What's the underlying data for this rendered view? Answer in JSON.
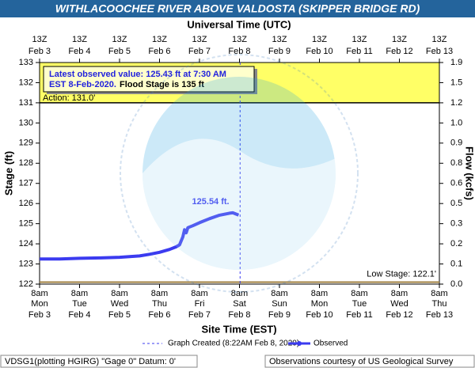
{
  "chart_data": {
    "type": "line",
    "title": "WITHLACOOCHEE RIVER ABOVE VALDOSTA (SKIPPER BRIDGE RD)",
    "top_axis_label": "Universal Time (UTC)",
    "x_label": "Site Time (EST)",
    "y_label": "Stage (ft)",
    "y2_label": "Flow (kcfs)",
    "xlim": [
      "2020-02-03T08:00",
      "2020-02-13T08:00"
    ],
    "xticks": [
      "2020-02-03T08:00",
      "2020-02-04T08:00",
      "2020-02-05T08:00",
      "2020-02-06T08:00",
      "2020-02-07T08:00",
      "2020-02-08T08:00",
      "2020-02-09T08:00",
      "2020-02-10T08:00",
      "2020-02-11T08:00",
      "2020-02-12T08:00",
      "2020-02-13T08:00"
    ],
    "xtick_labels": [
      {
        "time": "8am",
        "day": "Mon",
        "date": "Feb 3"
      },
      {
        "time": "8am",
        "day": "Tue",
        "date": "Feb 4"
      },
      {
        "time": "8am",
        "day": "Wed",
        "date": "Feb 5"
      },
      {
        "time": "8am",
        "day": "Thu",
        "date": "Feb 6"
      },
      {
        "time": "8am",
        "day": "Fri",
        "date": "Feb 7"
      },
      {
        "time": "8am",
        "day": "Sat",
        "date": "Feb 8"
      },
      {
        "time": "8am",
        "day": "Sun",
        "date": "Feb 9"
      },
      {
        "time": "8am",
        "day": "Mon",
        "date": "Feb 10"
      },
      {
        "time": "8am",
        "day": "Tue",
        "date": "Feb 11"
      },
      {
        "time": "8am",
        "day": "Wed",
        "date": "Feb 12"
      },
      {
        "time": "8am",
        "day": "Thu",
        "date": "Feb 13"
      }
    ],
    "top_tick_labels": [
      {
        "utc": "13Z",
        "date": "Feb 3"
      },
      {
        "utc": "13Z",
        "date": "Feb 4"
      },
      {
        "utc": "13Z",
        "date": "Feb 5"
      },
      {
        "utc": "13Z",
        "date": "Feb 6"
      },
      {
        "utc": "13Z",
        "date": "Feb 7"
      },
      {
        "utc": "13Z",
        "date": "Feb 8"
      },
      {
        "utc": "13Z",
        "date": "Feb 9"
      },
      {
        "utc": "13Z",
        "date": "Feb 10"
      },
      {
        "utc": "13Z",
        "date": "Feb 11"
      },
      {
        "utc": "13Z",
        "date": "Feb 12"
      },
      {
        "utc": "13Z",
        "date": "Feb 13"
      }
    ],
    "ylim": [
      122,
      133
    ],
    "yticks": [
      122,
      123,
      124,
      125,
      126,
      127,
      128,
      129,
      130,
      131,
      132,
      133
    ],
    "y2ticks": [
      {
        "value": 0,
        "label": "0.0"
      },
      {
        "value": 0.1,
        "label": "0.1"
      },
      {
        "value": 0.2,
        "label": "0.2"
      },
      {
        "value": 0.3,
        "label": "0.3"
      },
      {
        "value": 0.5,
        "label": "0.5"
      },
      {
        "value": 0.6,
        "label": "0.6"
      },
      {
        "value": 0.8,
        "label": "0.8"
      },
      {
        "value": 0.9,
        "label": "0.9"
      },
      {
        "value": 1,
        "label": "1.0"
      },
      {
        "value": 1.2,
        "label": "1.2"
      },
      {
        "value": 1.5,
        "label": "1.5"
      },
      {
        "value": 1.9,
        "label": "1.9"
      }
    ],
    "action_stage": 131.0,
    "action_label": "Action: 131.0'",
    "low_stage": 122.1,
    "low_label": "Low Stage: 122.1'",
    "graph_created": "2020-02-08T08:22",
    "info_line1": "Latest observed value: 125.43 ft at 7:30 AM",
    "info_line2": "EST 8-Feb-2020.",
    "info_flood": "Flood Stage is 135 ft",
    "peak_label": "125.54 ft.",
    "peak_index": 20,
    "legend_created": "Graph Created (8:22AM Feb 8, 2020)",
    "footer_left": "VDSG1(plotting HGIRG) \"Gage 0\" Datum: 0'",
    "footer_right": "Observations courtesy of US Geological Survey",
    "x": [
      "2020-02-03T08:00",
      "2020-02-03T20:00",
      "2020-02-04T08:00",
      "2020-02-04T20:00",
      "2020-02-05T08:00",
      "2020-02-05T20:00",
      "2020-02-06T02:00",
      "2020-02-06T08:00",
      "2020-02-06T14:00",
      "2020-02-06T18:00",
      "2020-02-06T20:00",
      "2020-02-06T22:00",
      "2020-02-06T23:00",
      "2020-02-07T00:00",
      "2020-02-07T01:00",
      "2020-02-07T04:00",
      "2020-02-07T08:00",
      "2020-02-07T14:00",
      "2020-02-07T20:00",
      "2020-02-08T02:00",
      "2020-02-08T04:00",
      "2020-02-08T07:30"
    ],
    "series": [
      {
        "name": "Observed",
        "color": "#3b3bf0",
        "values": [
          123.25,
          123.25,
          123.28,
          123.3,
          123.33,
          123.4,
          123.48,
          123.58,
          123.72,
          123.85,
          123.95,
          124.35,
          124.7,
          124.55,
          124.8,
          124.9,
          125.05,
          125.25,
          125.42,
          125.52,
          125.54,
          125.43
        ]
      }
    ]
  }
}
